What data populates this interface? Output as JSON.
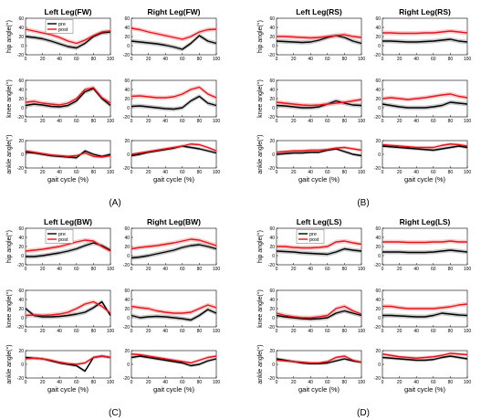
{
  "figure": {
    "x_label": "gait cycle (%)",
    "y_labels": [
      "hip angle(°)",
      "knee angle(°)",
      "ankle angle(°)"
    ],
    "legend_pre": "pre",
    "legend_post": "post",
    "colors": {
      "pre": "#000000",
      "post": "#e8141c",
      "pre_band": "#9a9a9a",
      "post_band": "#f4a3a3"
    }
  },
  "chart_data": [
    {
      "id": "A",
      "panel_label": "(A)",
      "type": "line",
      "x": [
        0,
        10,
        20,
        30,
        40,
        50,
        60,
        70,
        80,
        90,
        100
      ],
      "xlim": [
        0,
        100
      ],
      "plots": [
        {
          "title": "Left Leg(FW)",
          "joint": "hip",
          "ylim": [
            -20,
            60
          ],
          "yticks": [
            -20,
            0,
            20,
            40,
            60
          ],
          "pre": [
            20,
            18,
            15,
            10,
            4,
            -2,
            -5,
            5,
            20,
            28,
            30
          ],
          "post": [
            36,
            32,
            28,
            24,
            18,
            10,
            5,
            12,
            22,
            30,
            32
          ]
        },
        {
          "title": "Right Leg(FW)",
          "joint": "hip",
          "ylim": [
            -20,
            60
          ],
          "yticks": [
            -20,
            0,
            20,
            40,
            60
          ],
          "pre": [
            10,
            8,
            6,
            4,
            1,
            -3,
            -8,
            5,
            22,
            10,
            5
          ],
          "post": [
            38,
            35,
            30,
            26,
            22,
            18,
            14,
            20,
            30,
            35,
            36
          ]
        },
        {
          "title": "",
          "joint": "knee",
          "ylim": [
            -20,
            60
          ],
          "yticks": [
            -20,
            0,
            20,
            40,
            60
          ],
          "pre": [
            5,
            8,
            6,
            3,
            2,
            5,
            15,
            35,
            42,
            20,
            5
          ],
          "post": [
            12,
            14,
            10,
            8,
            6,
            10,
            20,
            40,
            44,
            22,
            10
          ]
        },
        {
          "title": "",
          "joint": "knee",
          "ylim": [
            -20,
            60
          ],
          "yticks": [
            -20,
            0,
            20,
            40,
            60
          ],
          "pre": [
            3,
            4,
            2,
            0,
            -2,
            -3,
            0,
            15,
            25,
            10,
            5
          ],
          "post": [
            25,
            26,
            24,
            22,
            22,
            24,
            30,
            40,
            45,
            30,
            22
          ]
        },
        {
          "title": "",
          "joint": "ankle",
          "ylim": [
            -20,
            20
          ],
          "yticks": [
            -20,
            0,
            20
          ],
          "pre": [
            3,
            2,
            0,
            -2,
            -3,
            -4,
            -5,
            5,
            0,
            -3,
            0
          ],
          "post": [
            5,
            3,
            1,
            -1,
            -2,
            -3,
            -2,
            2,
            -3,
            -4,
            -2
          ]
        },
        {
          "title": "",
          "joint": "ankle",
          "ylim": [
            -20,
            20
          ],
          "yticks": [
            -20,
            0,
            20
          ],
          "pre": [
            -2,
            0,
            3,
            5,
            7,
            9,
            12,
            10,
            8,
            5,
            2
          ],
          "post": [
            0,
            2,
            4,
            6,
            8,
            10,
            12,
            15,
            14,
            10,
            5
          ]
        }
      ]
    },
    {
      "id": "B",
      "panel_label": "(B)",
      "type": "line",
      "x": [
        0,
        10,
        20,
        30,
        40,
        50,
        60,
        70,
        80,
        90,
        100
      ],
      "xlim": [
        0,
        100
      ],
      "plots": [
        {
          "title": "Left Leg(RS)",
          "joint": "hip",
          "ylim": [
            -20,
            60
          ],
          "yticks": [
            -20,
            0,
            20,
            40,
            60
          ],
          "pre": [
            10,
            9,
            8,
            7,
            8,
            12,
            18,
            22,
            18,
            10,
            5
          ],
          "post": [
            20,
            20,
            19,
            18,
            17,
            18,
            20,
            22,
            24,
            20,
            18
          ]
        },
        {
          "title": "Right Leg(RS)",
          "joint": "hip",
          "ylim": [
            -20,
            60
          ],
          "yticks": [
            -20,
            0,
            20,
            40,
            60
          ],
          "pre": [
            10,
            10,
            9,
            8,
            8,
            9,
            10,
            12,
            14,
            10,
            8
          ],
          "post": [
            28,
            28,
            27,
            27,
            27,
            28,
            28,
            30,
            32,
            30,
            28
          ]
        },
        {
          "title": "",
          "joint": "knee",
          "ylim": [
            -20,
            60
          ],
          "yticks": [
            -20,
            0,
            20,
            40,
            60
          ],
          "pre": [
            5,
            4,
            2,
            0,
            0,
            2,
            8,
            15,
            10,
            6,
            5
          ],
          "post": [
            12,
            10,
            8,
            6,
            5,
            6,
            8,
            10,
            12,
            15,
            18
          ]
        },
        {
          "title": "",
          "joint": "knee",
          "ylim": [
            -20,
            60
          ],
          "yticks": [
            -20,
            0,
            20,
            40,
            60
          ],
          "pre": [
            8,
            5,
            2,
            0,
            0,
            0,
            2,
            5,
            12,
            10,
            8
          ],
          "post": [
            20,
            22,
            20,
            18,
            20,
            22,
            25,
            28,
            30,
            25,
            22
          ]
        },
        {
          "title": "",
          "joint": "ankle",
          "ylim": [
            -20,
            20
          ],
          "yticks": [
            -20,
            0,
            20
          ],
          "pre": [
            0,
            1,
            2,
            2,
            3,
            3,
            6,
            8,
            4,
            0,
            -2
          ],
          "post": [
            3,
            4,
            5,
            5,
            6,
            6,
            7,
            9,
            10,
            8,
            6
          ]
        },
        {
          "title": "",
          "joint": "ankle",
          "ylim": [
            -20,
            20
          ],
          "yticks": [
            -20,
            0,
            20
          ],
          "pre": [
            12,
            11,
            10,
            9,
            8,
            7,
            6,
            8,
            10,
            12,
            10
          ],
          "post": [
            14,
            13,
            12,
            11,
            10,
            10,
            10,
            13,
            15,
            14,
            12
          ]
        }
      ]
    },
    {
      "id": "C",
      "panel_label": "(C)",
      "type": "line",
      "x": [
        0,
        10,
        20,
        30,
        40,
        50,
        60,
        70,
        80,
        90,
        100
      ],
      "xlim": [
        0,
        100
      ],
      "plots": [
        {
          "title": "Left Leg(BW)",
          "joint": "hip",
          "ylim": [
            -20,
            60
          ],
          "yticks": [
            -20,
            0,
            20,
            40,
            60
          ],
          "pre": [
            -2,
            -2,
            0,
            3,
            6,
            10,
            15,
            22,
            28,
            22,
            12
          ],
          "post": [
            10,
            12,
            14,
            17,
            20,
            25,
            30,
            34,
            32,
            20,
            10
          ]
        },
        {
          "title": "Right Leg(BW)",
          "joint": "hip",
          "ylim": [
            -20,
            60
          ],
          "yticks": [
            -20,
            0,
            20,
            40,
            60
          ],
          "pre": [
            -5,
            -3,
            0,
            4,
            8,
            12,
            18,
            22,
            24,
            20,
            15
          ],
          "post": [
            15,
            18,
            20,
            22,
            25,
            28,
            32,
            36,
            34,
            28,
            22
          ]
        },
        {
          "title": "",
          "joint": "knee",
          "ylim": [
            -20,
            60
          ],
          "yticks": [
            -20,
            0,
            20,
            40,
            60
          ],
          "pre": [
            20,
            5,
            2,
            2,
            3,
            5,
            8,
            12,
            22,
            35,
            5
          ],
          "post": [
            5,
            6,
            5,
            6,
            8,
            12,
            20,
            30,
            35,
            25,
            10
          ]
        },
        {
          "title": "",
          "joint": "knee",
          "ylim": [
            -20,
            60
          ],
          "yticks": [
            -20,
            0,
            20,
            40,
            60
          ],
          "pre": [
            5,
            0,
            2,
            3,
            2,
            0,
            -2,
            -5,
            5,
            18,
            10
          ],
          "post": [
            25,
            22,
            20,
            15,
            12,
            10,
            10,
            12,
            20,
            28,
            22
          ]
        },
        {
          "title": "",
          "joint": "ankle",
          "ylim": [
            -20,
            20
          ],
          "yticks": [
            -20,
            0,
            20
          ],
          "pre": [
            10,
            9,
            8,
            5,
            2,
            0,
            -2,
            -10,
            10,
            12,
            10
          ],
          "post": [
            8,
            9,
            8,
            6,
            3,
            1,
            0,
            2,
            10,
            12,
            10
          ]
        },
        {
          "title": "",
          "joint": "ankle",
          "ylim": [
            -20,
            20
          ],
          "yticks": [
            -20,
            0,
            20
          ],
          "pre": [
            10,
            12,
            10,
            8,
            6,
            4,
            2,
            -2,
            0,
            5,
            8
          ],
          "post": [
            15,
            14,
            12,
            10,
            8,
            6,
            4,
            2,
            6,
            10,
            12
          ]
        }
      ]
    },
    {
      "id": "D",
      "panel_label": "(D)",
      "type": "line",
      "x": [
        0,
        10,
        20,
        30,
        40,
        50,
        60,
        70,
        80,
        90,
        100
      ],
      "xlim": [
        0,
        100
      ],
      "plots": [
        {
          "title": "Left Leg(LS)",
          "joint": "hip",
          "ylim": [
            -20,
            60
          ],
          "yticks": [
            -20,
            0,
            20,
            40,
            60
          ],
          "pre": [
            10,
            9,
            8,
            6,
            5,
            4,
            3,
            8,
            15,
            12,
            10
          ],
          "post": [
            20,
            20,
            18,
            17,
            17,
            18,
            20,
            30,
            32,
            28,
            25
          ]
        },
        {
          "title": "Right Leg(LS)",
          "joint": "hip",
          "ylim": [
            -20,
            60
          ],
          "yticks": [
            -20,
            0,
            20,
            40,
            60
          ],
          "pre": [
            8,
            8,
            8,
            7,
            7,
            7,
            8,
            10,
            12,
            10,
            8
          ],
          "post": [
            30,
            30,
            30,
            29,
            29,
            29,
            30,
            30,
            32,
            30,
            30
          ]
        },
        {
          "title": "",
          "joint": "knee",
          "ylim": [
            -20,
            60
          ],
          "yticks": [
            -20,
            0,
            20,
            40,
            60
          ],
          "pre": [
            5,
            2,
            0,
            -2,
            -3,
            -2,
            0,
            10,
            15,
            10,
            5
          ],
          "post": [
            10,
            5,
            2,
            0,
            0,
            2,
            5,
            20,
            25,
            15,
            8
          ]
        },
        {
          "title": "",
          "joint": "knee",
          "ylim": [
            -20,
            60
          ],
          "yticks": [
            -20,
            0,
            20,
            40,
            60
          ],
          "pre": [
            5,
            5,
            4,
            3,
            2,
            2,
            5,
            10,
            8,
            6,
            5
          ],
          "post": [
            25,
            25,
            22,
            20,
            20,
            20,
            20,
            22,
            24,
            28,
            30
          ]
        },
        {
          "title": "",
          "joint": "ankle",
          "ylim": [
            -20,
            20
          ],
          "yticks": [
            -20,
            0,
            20
          ],
          "pre": [
            8,
            6,
            4,
            2,
            1,
            1,
            2,
            5,
            8,
            5,
            3
          ],
          "post": [
            6,
            5,
            4,
            3,
            2,
            2,
            4,
            10,
            12,
            6,
            3
          ]
        },
        {
          "title": "",
          "joint": "ankle",
          "ylim": [
            -20,
            20
          ],
          "yticks": [
            -20,
            0,
            20
          ],
          "pre": [
            10,
            9,
            8,
            7,
            6,
            6,
            7,
            10,
            12,
            10,
            8
          ],
          "post": [
            15,
            13,
            11,
            10,
            9,
            10,
            11,
            13,
            16,
            15,
            14
          ]
        }
      ]
    }
  ]
}
